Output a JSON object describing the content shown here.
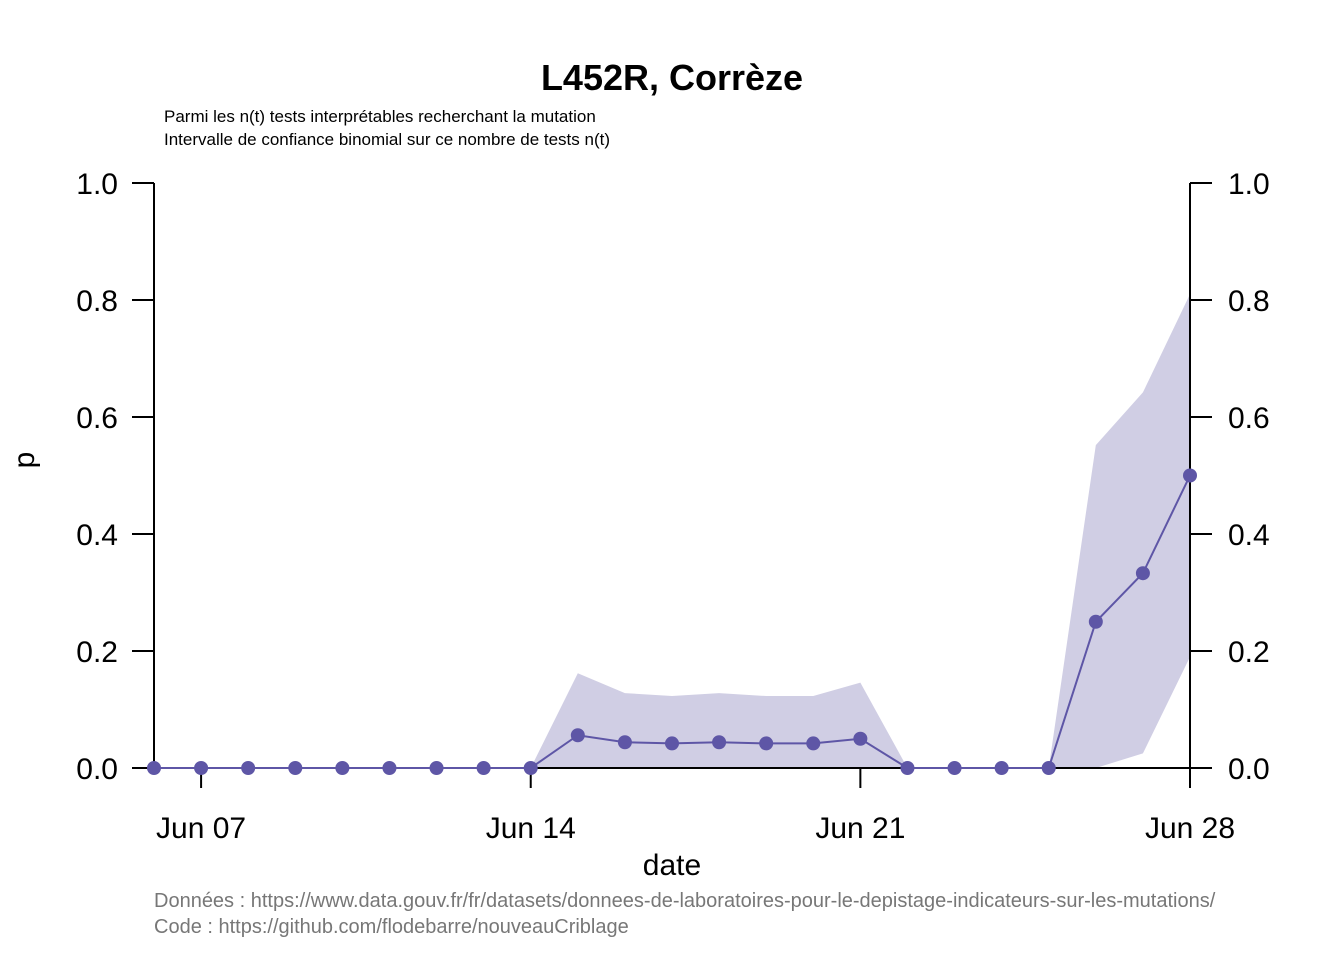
{
  "chart_data": {
    "type": "line",
    "title": "L452R, Corrèze",
    "subtitle_lines": [
      "Parmi les n(t) tests interprétables recherchant la mutation",
      "Intervalle de confiance binomial sur ce nombre de tests n(t)"
    ],
    "xlabel": "date",
    "ylabel": "p",
    "ylim": [
      0,
      1
    ],
    "y_ticks": [
      "0.0",
      "0.2",
      "0.4",
      "0.6",
      "0.8",
      "1.0"
    ],
    "x_ticks": [
      "Jun 07",
      "Jun 14",
      "Jun 21",
      "Jun 28"
    ],
    "x": [
      "Jun 06",
      "Jun 07",
      "Jun 08",
      "Jun 09",
      "Jun 10",
      "Jun 11",
      "Jun 12",
      "Jun 13",
      "Jun 14",
      "Jun 15",
      "Jun 16",
      "Jun 17",
      "Jun 18",
      "Jun 19",
      "Jun 20",
      "Jun 21",
      "Jun 22",
      "Jun 23",
      "Jun 24",
      "Jun 25",
      "Jun 26",
      "Jun 27",
      "Jun 28"
    ],
    "series": [
      {
        "values": [
          0,
          0,
          0,
          0,
          0,
          0,
          0,
          0,
          0,
          0.056,
          0.044,
          0.042,
          0.044,
          0.042,
          0.042,
          0.05,
          0,
          0,
          0,
          0,
          0.25,
          0.333,
          0.5
        ],
        "ci_lower": [
          0,
          0,
          0,
          0,
          0,
          0,
          0,
          0,
          0,
          0,
          0,
          0,
          0,
          0,
          0,
          0,
          0,
          0,
          0,
          0,
          0,
          0.025,
          0.19
        ],
        "ci_upper": [
          0,
          0,
          0,
          0,
          0,
          0,
          0,
          0,
          0,
          0.162,
          0.128,
          0.123,
          0.128,
          0.123,
          0.123,
          0.146,
          0,
          0,
          0,
          0,
          0.552,
          0.642,
          0.81
        ]
      }
    ],
    "colors": {
      "line": "#5e56a6",
      "ci_band": "#d0cee4"
    },
    "caption_lines": [
      "Données : https://www.data.gouv.fr/fr/datasets/donnees-de-laboratoires-pour-le-depistage-indicateurs-sur-les-mutations/",
      "Code : https://github.com/flodebarre/nouveauCriblage"
    ]
  }
}
